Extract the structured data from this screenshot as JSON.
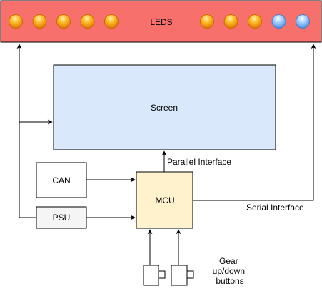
{
  "leds": {
    "label": "LEDS",
    "bar_color": "#f8706c",
    "left_group": [
      "orange",
      "orange",
      "orange",
      "orange",
      "orange"
    ],
    "right_group": [
      "orange",
      "orange",
      "orange",
      "blue",
      "blue"
    ]
  },
  "screen": {
    "label": "Screen",
    "fill": "#dae8fc"
  },
  "can": {
    "label": "CAN"
  },
  "psu": {
    "label": "PSU",
    "fill": "#f5f5f5"
  },
  "mcu": {
    "label": "MCU",
    "fill": "#fff2cc"
  },
  "connections": {
    "parallel": "Parallel Interface",
    "serial": "Serial Interface"
  },
  "buttons": {
    "label_lines": [
      "Gear",
      "up/down",
      "buttons"
    ]
  },
  "colors": {
    "led_orange": "#ff9900",
    "led_blue": "#7eb6f0",
    "line": "#000000"
  }
}
